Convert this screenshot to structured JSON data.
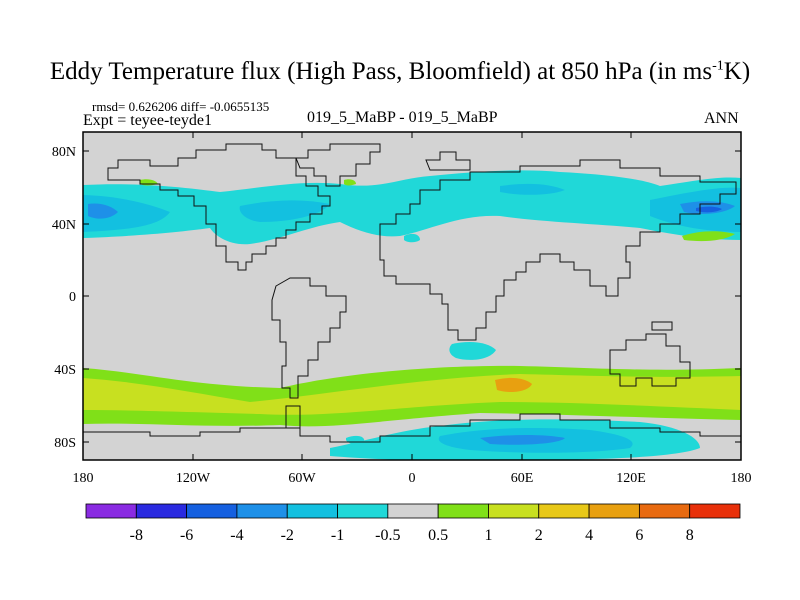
{
  "title": {
    "main": "Eddy Temperature flux (High Pass, Bloomfield) at 850 hPa (in ms",
    "sup": "-1",
    "end": "K)"
  },
  "stats": "rmsd= 0.626206 diff= -0.0655135",
  "expt": "Expt = teyee-teyde1",
  "cases": "019_5_MaBP - 019_5_MaBP",
  "season": "ANN",
  "axes": {
    "lat_ticks": [
      "80N",
      "40N",
      "0",
      "40S",
      "80S"
    ],
    "lon_ticks": [
      "180",
      "120W",
      "60W",
      "0",
      "60E",
      "120E",
      "180"
    ]
  },
  "colorbar": {
    "colors": [
      "#8a2be2",
      "#2a2ae0",
      "#1560e0",
      "#1e90e8",
      "#13c0e0",
      "#20d8d8",
      "#d3d3d3",
      "#80e018",
      "#c8e020",
      "#e8c818",
      "#e8a010",
      "#e86a10",
      "#e8300a"
    ],
    "labels": [
      "-8",
      "-6",
      "-4",
      "-2",
      "-1",
      "-0.5",
      "0.5",
      "1",
      "2",
      "4",
      "6",
      "8"
    ]
  },
  "map_colors": {
    "ocean_background": "#d3d3d3",
    "negative_light": "#20d8d8",
    "negative_medium": "#13c0e0",
    "negative_strong": "#1e90e8",
    "negative_deep": "#1560e0",
    "positive_green": "#80e018",
    "positive_yellow": "#c8e020",
    "positive_orange": "#e8c818",
    "positive_dark_orange": "#e8a010"
  }
}
